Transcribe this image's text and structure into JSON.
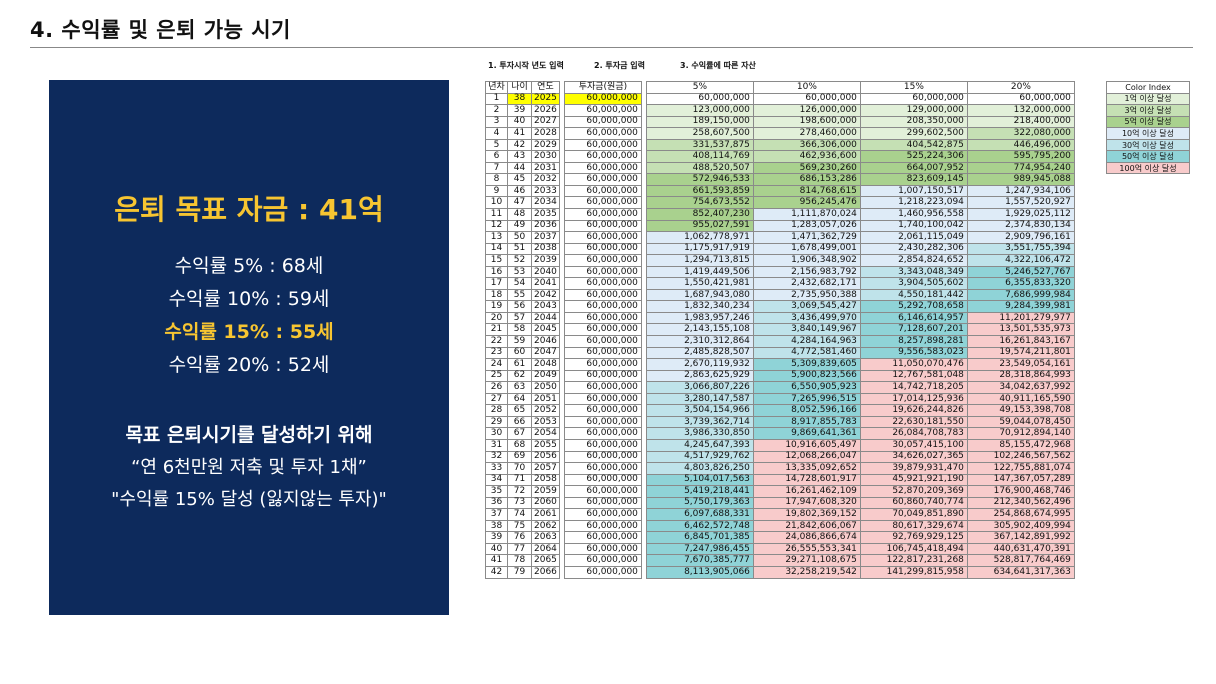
{
  "page_title": "4. 수익률 및 은퇴 가능 시기",
  "panel": {
    "goal": "은퇴 목표 자금 : 41억",
    "rates": [
      {
        "text": "수익률    5% : 68세",
        "highlight": false
      },
      {
        "text": "수익률 10% : 59세",
        "highlight": false
      },
      {
        "text": "수익률 15% : 55세",
        "highlight": true
      },
      {
        "text": "수익률 20% : 52세",
        "highlight": false
      }
    ],
    "line1": "목표 은퇴시기를 달성하기 위해",
    "line2": "“연 6천만원 저축 및 투자 1채”",
    "line3": "\"수익률 15% 달성 (잃지않는 투자)\""
  },
  "steps": [
    "1. 투자시작 년도 입력",
    "2. 투자금 입력",
    "3. 수익률에 따른 자산"
  ],
  "table": {
    "headers": [
      "년차",
      "나이",
      "연도",
      "투자금(원금)",
      "5%",
      "10%",
      "15%",
      "20%"
    ],
    "rows": [
      [
        "1",
        "38",
        "2025",
        "60,000,000",
        "60,000,000",
        "60,000,000",
        "60,000,000",
        "60,000,000"
      ],
      [
        "2",
        "39",
        "2026",
        "60,000,000",
        "123,000,000",
        "126,000,000",
        "129,000,000",
        "132,000,000"
      ],
      [
        "3",
        "40",
        "2027",
        "60,000,000",
        "189,150,000",
        "198,600,000",
        "208,350,000",
        "218,400,000"
      ],
      [
        "4",
        "41",
        "2028",
        "60,000,000",
        "258,607,500",
        "278,460,000",
        "299,602,500",
        "322,080,000"
      ],
      [
        "5",
        "42",
        "2029",
        "60,000,000",
        "331,537,875",
        "366,306,000",
        "404,542,875",
        "446,496,000"
      ],
      [
        "6",
        "43",
        "2030",
        "60,000,000",
        "408,114,769",
        "462,936,600",
        "525,224,306",
        "595,795,200"
      ],
      [
        "7",
        "44",
        "2031",
        "60,000,000",
        "488,520,507",
        "569,230,260",
        "664,007,952",
        "774,954,240"
      ],
      [
        "8",
        "45",
        "2032",
        "60,000,000",
        "572,946,533",
        "686,153,286",
        "823,609,145",
        "989,945,088"
      ],
      [
        "9",
        "46",
        "2033",
        "60,000,000",
        "661,593,859",
        "814,768,615",
        "1,007,150,517",
        "1,247,934,106"
      ],
      [
        "10",
        "47",
        "2034",
        "60,000,000",
        "754,673,552",
        "956,245,476",
        "1,218,223,094",
        "1,557,520,927"
      ],
      [
        "11",
        "48",
        "2035",
        "60,000,000",
        "852,407,230",
        "1,111,870,024",
        "1,460,956,558",
        "1,929,025,112"
      ],
      [
        "12",
        "49",
        "2036",
        "60,000,000",
        "955,027,591",
        "1,283,057,026",
        "1,740,100,042",
        "2,374,830,134"
      ],
      [
        "13",
        "50",
        "2037",
        "60,000,000",
        "1,062,778,971",
        "1,471,362,729",
        "2,061,115,049",
        "2,909,796,161"
      ],
      [
        "14",
        "51",
        "2038",
        "60,000,000",
        "1,175,917,919",
        "1,678,499,001",
        "2,430,282,306",
        "3,551,755,394"
      ],
      [
        "15",
        "52",
        "2039",
        "60,000,000",
        "1,294,713,815",
        "1,906,348,902",
        "2,854,824,652",
        "4,322,106,472"
      ],
      [
        "16",
        "53",
        "2040",
        "60,000,000",
        "1,419,449,506",
        "2,156,983,792",
        "3,343,048,349",
        "5,246,527,767"
      ],
      [
        "17",
        "54",
        "2041",
        "60,000,000",
        "1,550,421,981",
        "2,432,682,171",
        "3,904,505,602",
        "6,355,833,320"
      ],
      [
        "18",
        "55",
        "2042",
        "60,000,000",
        "1,687,943,080",
        "2,735,950,388",
        "4,550,181,442",
        "7,686,999,984"
      ],
      [
        "19",
        "56",
        "2043",
        "60,000,000",
        "1,832,340,234",
        "3,069,545,427",
        "5,292,708,658",
        "9,284,399,981"
      ],
      [
        "20",
        "57",
        "2044",
        "60,000,000",
        "1,983,957,246",
        "3,436,499,970",
        "6,146,614,957",
        "11,201,279,977"
      ],
      [
        "21",
        "58",
        "2045",
        "60,000,000",
        "2,143,155,108",
        "3,840,149,967",
        "7,128,607,201",
        "13,501,535,973"
      ],
      [
        "22",
        "59",
        "2046",
        "60,000,000",
        "2,310,312,864",
        "4,284,164,963",
        "8,257,898,281",
        "16,261,843,167"
      ],
      [
        "23",
        "60",
        "2047",
        "60,000,000",
        "2,485,828,507",
        "4,772,581,460",
        "9,556,583,023",
        "19,574,211,801"
      ],
      [
        "24",
        "61",
        "2048",
        "60,000,000",
        "2,670,119,932",
        "5,309,839,605",
        "11,050,070,476",
        "23,549,054,161"
      ],
      [
        "25",
        "62",
        "2049",
        "60,000,000",
        "2,863,625,929",
        "5,900,823,566",
        "12,767,581,048",
        "28,318,864,993"
      ],
      [
        "26",
        "63",
        "2050",
        "60,000,000",
        "3,066,807,226",
        "6,550,905,923",
        "14,742,718,205",
        "34,042,637,992"
      ],
      [
        "27",
        "64",
        "2051",
        "60,000,000",
        "3,280,147,587",
        "7,265,996,515",
        "17,014,125,936",
        "40,911,165,590"
      ],
      [
        "28",
        "65",
        "2052",
        "60,000,000",
        "3,504,154,966",
        "8,052,596,166",
        "19,626,244,826",
        "49,153,398,708"
      ],
      [
        "29",
        "66",
        "2053",
        "60,000,000",
        "3,739,362,714",
        "8,917,855,783",
        "22,630,181,550",
        "59,044,078,450"
      ],
      [
        "30",
        "67",
        "2054",
        "60,000,000",
        "3,986,330,850",
        "9,869,641,361",
        "26,084,708,783",
        "70,912,894,140"
      ],
      [
        "31",
        "68",
        "2055",
        "60,000,000",
        "4,245,647,393",
        "10,916,605,497",
        "30,057,415,100",
        "85,155,472,968"
      ],
      [
        "32",
        "69",
        "2056",
        "60,000,000",
        "4,517,929,762",
        "12,068,266,047",
        "34,626,027,365",
        "102,246,567,562"
      ],
      [
        "33",
        "70",
        "2057",
        "60,000,000",
        "4,803,826,250",
        "13,335,092,652",
        "39,879,931,470",
        "122,755,881,074"
      ],
      [
        "34",
        "71",
        "2058",
        "60,000,000",
        "5,104,017,563",
        "14,728,601,917",
        "45,921,921,190",
        "147,367,057,289"
      ],
      [
        "35",
        "72",
        "2059",
        "60,000,000",
        "5,419,218,441",
        "16,261,462,109",
        "52,870,209,369",
        "176,900,468,746"
      ],
      [
        "36",
        "73",
        "2060",
        "60,000,000",
        "5,750,179,363",
        "17,947,608,320",
        "60,860,740,774",
        "212,340,562,496"
      ],
      [
        "37",
        "74",
        "2061",
        "60,000,000",
        "6,097,688,331",
        "19,802,369,152",
        "70,049,851,890",
        "254,868,674,995"
      ],
      [
        "38",
        "75",
        "2062",
        "60,000,000",
        "6,462,572,748",
        "21,842,606,067",
        "80,617,329,674",
        "305,902,409,994"
      ],
      [
        "39",
        "76",
        "2063",
        "60,000,000",
        "6,845,701,385",
        "24,086,866,674",
        "92,769,929,125",
        "367,142,891,992"
      ],
      [
        "40",
        "77",
        "2064",
        "60,000,000",
        "7,247,986,455",
        "26,555,553,341",
        "106,745,418,494",
        "440,631,470,391"
      ],
      [
        "41",
        "78",
        "2065",
        "60,000,000",
        "7,670,385,777",
        "29,271,108,675",
        "122,817,231,268",
        "528,817,764,469"
      ],
      [
        "42",
        "79",
        "2066",
        "60,000,000",
        "8,113,905,066",
        "32,258,219,542",
        "141,299,815,958",
        "634,641,317,363"
      ]
    ]
  },
  "legend": {
    "title": "Color Index",
    "items": [
      {
        "label": "1억 이상 달성",
        "color": "#e2f0d9"
      },
      {
        "label": "3억 이상 달성",
        "color": "#c5e0b4"
      },
      {
        "label": "5억 이상 달성",
        "color": "#a9d18e"
      },
      {
        "label": "10억 이상 달성",
        "color": "#deebf7"
      },
      {
        "label": "30억 이상 달성",
        "color": "#bfe3ea"
      },
      {
        "label": "50억 이상 달성",
        "color": "#8fd3d7"
      },
      {
        "label": "100억 이상 달성",
        "color": "#f8cbcb"
      }
    ]
  }
}
